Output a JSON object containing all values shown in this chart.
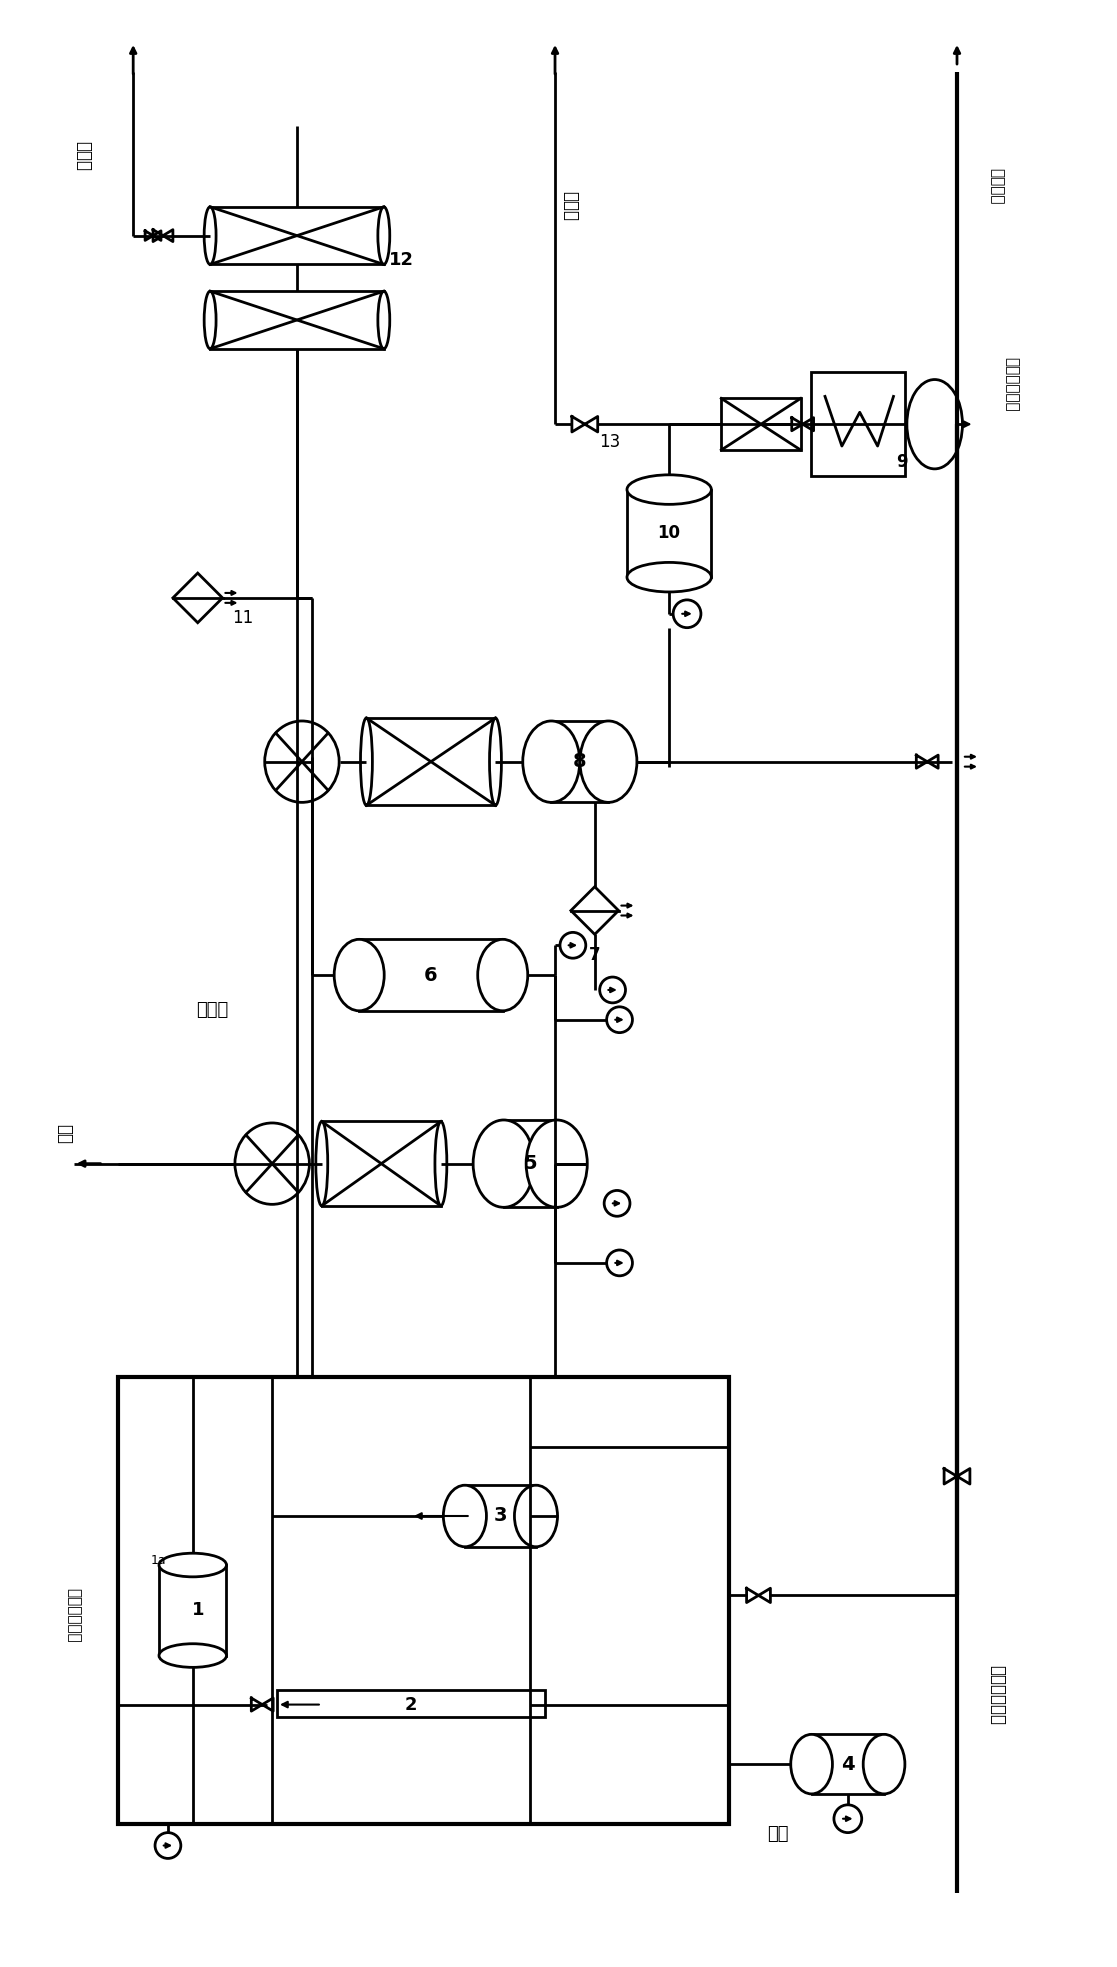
{
  "bg": "#ffffff",
  "lc": "#000000",
  "fw": 11.17,
  "fh": 19.67,
  "dpi": 100,
  "labels": {
    "waste_acid": "废硫酸",
    "vacuum": "抽真空",
    "refrigeration": "制冷系",
    "raw_material": "原料",
    "straight_diesel": "直馆柴油进料",
    "catalytic": "催化氧化装置",
    "water_oxidation": "水相氧化",
    "diesel_hydro": "架油加氢装置",
    "air": "空气",
    "n11": "11",
    "n12": "12",
    "n13": "13"
  }
}
